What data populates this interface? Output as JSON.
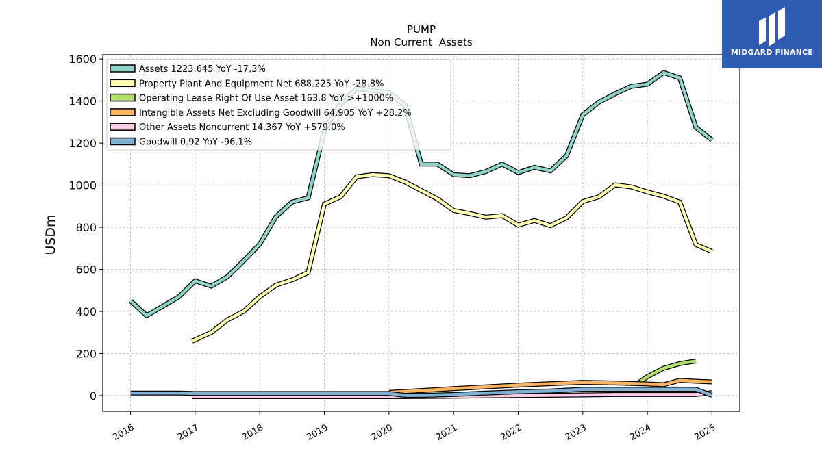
{
  "chart_data": {
    "type": "line",
    "title": "PUMP",
    "subtitle": "Non Current  Assets",
    "ylabel": "USDm",
    "xlabel": "",
    "xlim": [
      2015.57,
      2025.43
    ],
    "ylim": [
      -75,
      1620
    ],
    "grid": true,
    "legend_placement": "top-left",
    "x_ticks": [
      "2016",
      "2017",
      "2018",
      "2019",
      "2020",
      "2021",
      "2022",
      "2023",
      "2024",
      "2025"
    ],
    "y_ticks": [
      "0",
      "200",
      "400",
      "600",
      "800",
      "1000",
      "1200",
      "1400",
      "1600"
    ],
    "series": [
      {
        "name": "Assets",
        "legend": "Assets  1223.645 YoY -17.3%",
        "color": "#8dd3c7",
        "points": [
          [
            2016.0,
            450
          ],
          [
            2016.25,
            380
          ],
          [
            2016.5,
            425
          ],
          [
            2016.75,
            470
          ],
          [
            2017.0,
            545
          ],
          [
            2017.25,
            520
          ],
          [
            2017.5,
            565
          ],
          [
            2017.75,
            640
          ],
          [
            2018.0,
            720
          ],
          [
            2018.25,
            850
          ],
          [
            2018.5,
            920
          ],
          [
            2018.75,
            940
          ],
          [
            2019.0,
            1260
          ],
          [
            2019.25,
            1385
          ],
          [
            2019.5,
            1460
          ],
          [
            2019.75,
            1450
          ],
          [
            2020.0,
            1440
          ],
          [
            2020.25,
            1380
          ],
          [
            2020.5,
            1100
          ],
          [
            2020.75,
            1100
          ],
          [
            2021.0,
            1050
          ],
          [
            2021.25,
            1045
          ],
          [
            2021.5,
            1065
          ],
          [
            2021.75,
            1100
          ],
          [
            2022.0,
            1060
          ],
          [
            2022.25,
            1085
          ],
          [
            2022.5,
            1068
          ],
          [
            2022.75,
            1140
          ],
          [
            2023.0,
            1335
          ],
          [
            2023.25,
            1395
          ],
          [
            2023.5,
            1435
          ],
          [
            2023.75,
            1470
          ],
          [
            2024.0,
            1480
          ],
          [
            2024.25,
            1535
          ],
          [
            2024.5,
            1510
          ],
          [
            2024.75,
            1275
          ],
          [
            2025.0,
            1215
          ]
        ]
      },
      {
        "name": "Property Plant And Equipment Net",
        "legend": "Property Plant And Equipment Net  688.225 YoY -28.8%",
        "color": "#ffffb3",
        "points": [
          [
            2016.95,
            258
          ],
          [
            2017.25,
            300
          ],
          [
            2017.5,
            360
          ],
          [
            2017.75,
            400
          ],
          [
            2018.0,
            470
          ],
          [
            2018.25,
            525
          ],
          [
            2018.5,
            550
          ],
          [
            2018.75,
            585
          ],
          [
            2019.0,
            910
          ],
          [
            2019.25,
            945
          ],
          [
            2019.5,
            1040
          ],
          [
            2019.75,
            1050
          ],
          [
            2020.0,
            1045
          ],
          [
            2020.25,
            1015
          ],
          [
            2020.5,
            975
          ],
          [
            2020.75,
            935
          ],
          [
            2021.0,
            880
          ],
          [
            2021.25,
            865
          ],
          [
            2021.5,
            848
          ],
          [
            2021.75,
            855
          ],
          [
            2022.0,
            810
          ],
          [
            2022.25,
            832
          ],
          [
            2022.5,
            808
          ],
          [
            2022.75,
            845
          ],
          [
            2023.0,
            922
          ],
          [
            2023.25,
            945
          ],
          [
            2023.5,
            1002
          ],
          [
            2023.75,
            992
          ],
          [
            2024.0,
            968
          ],
          [
            2024.25,
            948
          ],
          [
            2024.5,
            920
          ],
          [
            2024.75,
            718
          ],
          [
            2025.0,
            685
          ]
        ]
      },
      {
        "name": "Operating Lease Right Of Use Asset",
        "legend": "Operating Lease Right Of Use Asset  163.8 YoY >+1000%",
        "color": "#b3de69",
        "points": [
          [
            2023.85,
            58
          ],
          [
            2024.0,
            90
          ],
          [
            2024.25,
            130
          ],
          [
            2024.5,
            152
          ],
          [
            2024.75,
            164
          ]
        ]
      },
      {
        "name": "Intangible Assets Net Excluding Goodwill",
        "legend": "Intangible Assets Net Excluding Goodwill  64.905 YoY +28.2%",
        "color": "#fdb462",
        "points": [
          [
            2020.0,
            15
          ],
          [
            2021.0,
            33
          ],
          [
            2022.0,
            50
          ],
          [
            2023.0,
            63
          ],
          [
            2023.5,
            60
          ],
          [
            2024.0,
            55
          ],
          [
            2024.25,
            52
          ],
          [
            2024.5,
            72
          ],
          [
            2024.75,
            68
          ],
          [
            2025.0,
            65
          ]
        ]
      },
      {
        "name": "Other Assets Noncurrent",
        "legend": "Other Assets Noncurrent  14.367 YoY +579.0%",
        "color": "#fccde5",
        "points": [
          [
            2016.95,
            -5
          ],
          [
            2018.0,
            -5
          ],
          [
            2019.0,
            -5
          ],
          [
            2020.0,
            -5
          ],
          [
            2021.0,
            -3
          ],
          [
            2022.0,
            0
          ],
          [
            2023.0,
            3
          ],
          [
            2023.5,
            5
          ],
          [
            2024.0,
            5
          ],
          [
            2024.5,
            5
          ],
          [
            2024.75,
            5
          ],
          [
            2025.0,
            14
          ]
        ]
      },
      {
        "name": "Goodwill",
        "legend": "Goodwill  0.92 YoY -96.1%",
        "color": "#80b1d3",
        "points": [
          [
            2016.0,
            12
          ],
          [
            2016.75,
            12
          ],
          [
            2017.0,
            10
          ],
          [
            2018.0,
            10
          ],
          [
            2019.0,
            10
          ],
          [
            2020.0,
            10
          ],
          [
            2020.25,
            1
          ],
          [
            2020.5,
            1
          ],
          [
            2021.0,
            5
          ],
          [
            2021.5,
            12
          ],
          [
            2022.0,
            18
          ],
          [
            2022.5,
            22
          ],
          [
            2023.0,
            30
          ],
          [
            2023.5,
            30
          ],
          [
            2024.0,
            30
          ],
          [
            2024.5,
            30
          ],
          [
            2024.75,
            30
          ],
          [
            2025.0,
            1
          ]
        ]
      }
    ]
  },
  "logo": {
    "text": "MIDGARD FINANCE",
    "background": "#2f5bb0"
  }
}
